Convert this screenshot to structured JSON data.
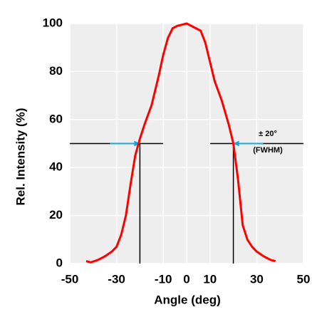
{
  "chart_data": {
    "type": "line",
    "x_label": "Angle (deg)",
    "y_label": "Rel. Intensity (%)",
    "x": [
      -43,
      -41,
      -38,
      -35,
      -32,
      -30,
      -28,
      -26,
      -24,
      -22,
      -20,
      -18,
      -15,
      -12,
      -10,
      -8,
      -6,
      -4,
      -2,
      0,
      2,
      4,
      6,
      8,
      10,
      12,
      15,
      18,
      20,
      22,
      24,
      26,
      28,
      30,
      33,
      36,
      38
    ],
    "series": [
      {
        "color": "#ff0000",
        "values": [
          1,
          0.5,
          1.5,
          3,
          5,
          7,
          12,
          20,
          33,
          45,
          52,
          58,
          66,
          78,
          87,
          94,
          98,
          99,
          99.5,
          100,
          99,
          98,
          97,
          92,
          84,
          76,
          68,
          58,
          50,
          35,
          16,
          10,
          7,
          5,
          3,
          1.5,
          1
        ]
      }
    ],
    "xlim": [
      -50,
      50
    ],
    "xticks": [
      -50,
      -30,
      -10,
      0,
      10,
      30,
      50
    ],
    "ylim": [
      0,
      100
    ],
    "yticks": [
      0,
      20,
      40,
      60,
      80,
      100
    ],
    "grid": true,
    "reference_lines": {
      "y": 50,
      "x": [
        -20,
        20
      ]
    },
    "annotations": [
      "± 20°",
      "(FWHM)"
    ]
  }
}
